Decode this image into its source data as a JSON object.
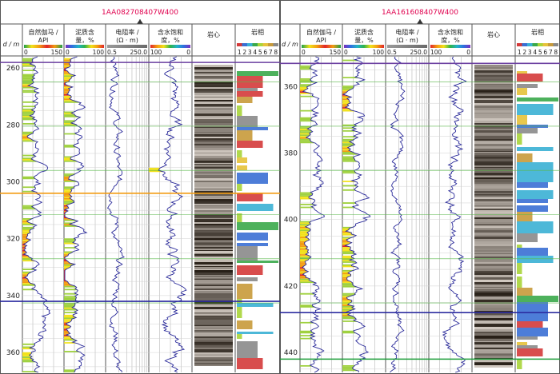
{
  "figure": {
    "units_label": "d / m",
    "panels": [
      {
        "well_name": "1AA082708407W400",
        "depth_ticks": [
          260,
          280,
          300,
          320,
          340,
          360
        ],
        "depth_min": 256,
        "depth_max": 367,
        "seed": 7,
        "tracks": {
          "gr": {
            "label1": "自然伽马 /",
            "label2": "API",
            "min": "0",
            "max": "150"
          },
          "shale": {
            "label1": "泥质含",
            "label2": "量，%",
            "min": "0",
            "max": "100"
          },
          "res": {
            "label1": "电阻率 /",
            "label2": "(Ω · m)",
            "min": "0.5",
            "max": "250.0"
          },
          "sw": {
            "label1": "含水饱和",
            "label2": "度，%",
            "min": "100",
            "max": "0"
          },
          "core": {
            "label": "岩心"
          },
          "facies": {
            "label": "岩相",
            "scale": [
              "1",
              "2",
              "3",
              "4",
              "5",
              "6",
              "7",
              "8"
            ]
          }
        },
        "marker_lines": [
          {
            "depth": 258,
            "color": "#6b3fa0"
          },
          {
            "depth": 304,
            "color": "#f39c12"
          },
          {
            "depth": 342,
            "color": "#2c2ca0"
          }
        ]
      },
      {
        "well_name": "1AA161608407W400",
        "depth_ticks": [
          360,
          380,
          400,
          420,
          440
        ],
        "depth_min": 351,
        "depth_max": 446,
        "seed": 13,
        "tracks": {
          "gr": {
            "label1": "自然伽马 /",
            "label2": "API",
            "min": "0",
            "max": "150"
          },
          "shale": {
            "label1": "泥质含",
            "label2": "量，%",
            "min": "0",
            "max": "100"
          },
          "res": {
            "label1": "电阻率 /",
            "label2": "(Ω · m)",
            "min": "0.5",
            "max": "250.0"
          },
          "sw": {
            "label1": "含水饱和",
            "label2": "度，%",
            "min": "100",
            "max": "0"
          },
          "core": {
            "label": "岩心"
          },
          "facies": {
            "label": "岩相",
            "scale": [
              "1",
              "2",
              "3",
              "4",
              "5",
              "6",
              "7",
              "8"
            ]
          }
        },
        "marker_lines": [
          {
            "depth": 353,
            "color": "#6b3fa0"
          },
          {
            "depth": 428,
            "color": "#2c2ca0"
          },
          {
            "depth": 442,
            "color": "#1e9e3a"
          }
        ]
      }
    ],
    "colors": {
      "well_name": "#e0004e",
      "curve": "#2b2b9a",
      "grid": "#a8a8a8",
      "frame": "#555555"
    }
  }
}
